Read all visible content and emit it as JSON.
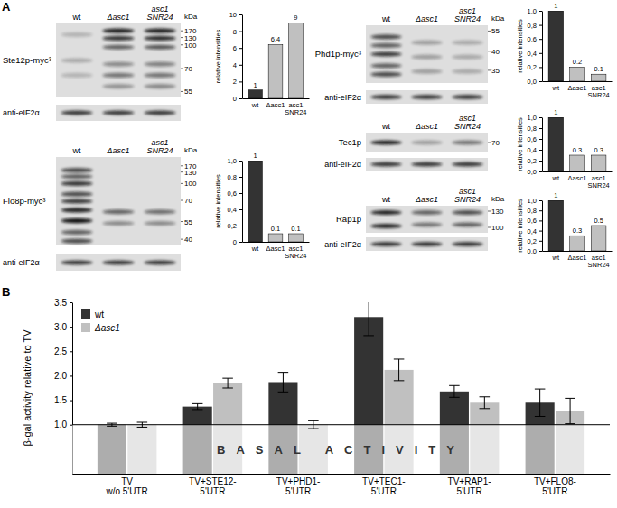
{
  "panel_labels": [
    "A",
    "B"
  ],
  "blots": [
    {
      "protein": "Ste12p-myc³",
      "lanes": [
        "wt",
        "Δasc1",
        "asc1\nSNR24"
      ],
      "unit": "kDa",
      "markers": [
        170,
        130,
        100,
        70,
        55
      ],
      "loading_control": "anti-eIF2α"
    },
    {
      "protein": "Flo8p-myc³",
      "lanes": [
        "wt",
        "Δasc1",
        "asc1\nSNR24"
      ],
      "unit": "kDa",
      "markers": [
        170,
        130,
        100,
        70,
        55,
        40
      ],
      "loading_control": "anti-eIF2α"
    },
    {
      "protein": "Phd1p-myc³",
      "lanes": [
        "wt",
        "Δasc1",
        "asc1\nSNR24"
      ],
      "unit": "kDa",
      "markers": [
        55,
        40,
        35
      ],
      "loading_control": "anti-eIF2α"
    },
    {
      "protein": "Tec1p",
      "lanes": [
        "wt",
        "Δasc1",
        "asc1\nSNR24"
      ],
      "markers": [
        70
      ],
      "loading_control": "anti-eIF2α"
    },
    {
      "protein": "Rap1p",
      "lanes": [
        "wt",
        "Δasc1",
        "asc1\nSNR24"
      ],
      "unit": "kDa",
      "markers": [
        130,
        100
      ],
      "loading_control": "anti-eIF2α"
    }
  ],
  "chart_data": [
    {
      "type": "bar",
      "categories": [
        "wt",
        "Δasc1",
        "asc1\nSNR24"
      ],
      "values": [
        1,
        6.4,
        9
      ],
      "colors": [
        "#333333",
        "#c0c0c0",
        "#c0c0c0"
      ],
      "ylabel": "relative intensities",
      "ylim": [
        0,
        10
      ],
      "yticks": [
        0,
        2,
        4,
        6,
        8,
        10
      ],
      "data_labels": true
    },
    {
      "type": "bar",
      "categories": [
        "wt",
        "Δasc1",
        "asc1\nSNR24"
      ],
      "values": [
        1,
        0.1,
        0.1
      ],
      "colors": [
        "#333333",
        "#c0c0c0",
        "#c0c0c0"
      ],
      "ylabel": "relative intensities",
      "ylim": [
        0,
        1
      ],
      "yticks": [
        0,
        {
          "value": 0.2,
          "label": "0,2"
        },
        {
          "value": 0.4,
          "label": "0,4"
        },
        {
          "value": 0.6,
          "label": "0,6"
        },
        {
          "value": 0.8,
          "label": "0,8"
        },
        {
          "value": 1,
          "label": "1,0"
        }
      ],
      "data_labels": true
    },
    {
      "type": "bar",
      "categories": [
        "wt",
        "Δasc1",
        "asc1\nSNR24"
      ],
      "values": [
        1,
        0.2,
        0.1
      ],
      "colors": [
        "#333333",
        "#c0c0c0",
        "#c0c0c0"
      ],
      "ylabel": "relative intensities",
      "ylim": [
        0,
        1
      ],
      "yticks": [
        {
          "value": 0,
          "label": "0,0"
        },
        {
          "value": 0.2,
          "label": "0,2"
        },
        {
          "value": 0.4,
          "label": "0,4"
        },
        {
          "value": 0.6,
          "label": "0,6"
        },
        {
          "value": 0.8,
          "label": "0,8"
        },
        {
          "value": 1,
          "label": "1,0"
        }
      ],
      "data_labels": true
    },
    {
      "type": "bar",
      "categories": [
        "wt",
        "Δasc1",
        "asc1\nSNR24"
      ],
      "values": [
        1,
        0.3,
        0.3
      ],
      "colors": [
        "#333333",
        "#c0c0c0",
        "#c0c0c0"
      ],
      "ylabel": "relative intensities",
      "ylim": [
        0,
        1
      ],
      "yticks": [
        {
          "value": 0,
          "label": "0,0"
        },
        {
          "value": 0.2,
          "label": "0,2"
        },
        {
          "value": 0.4,
          "label": "0,4"
        },
        {
          "value": 0.6,
          "label": "0,6"
        },
        {
          "value": 0.8,
          "label": "0,8"
        },
        {
          "value": 1,
          "label": "1,0"
        }
      ],
      "data_labels": true
    },
    {
      "type": "bar",
      "categories": [
        "wt",
        "Δasc1",
        "asc1\nSNR24"
      ],
      "values": [
        1,
        0.3,
        0.5
      ],
      "colors": [
        "#333333",
        "#c0c0c0",
        "#c0c0c0"
      ],
      "ylabel": "relative intensities",
      "ylim": [
        0,
        1
      ],
      "yticks": [
        {
          "value": 0,
          "label": "0,0"
        },
        {
          "value": 0.2,
          "label": "0,2"
        },
        {
          "value": 0.4,
          "label": "0,4"
        },
        {
          "value": 0.6,
          "label": "0,6"
        },
        {
          "value": 0.8,
          "label": "0,8"
        },
        {
          "value": 1,
          "label": "1,0"
        }
      ],
      "data_labels": true
    },
    {
      "type": "bar",
      "categories": [
        "TV\nw/o 5'UTR",
        "TV+STE12-\n5'UTR",
        "TV+PHD1-\n5'UTR",
        "TV+TEC1-\n5'UTR",
        "TV+RAP1-\n5'UTR",
        "TV+FLO8-\n5'UTR"
      ],
      "series": [
        {
          "name": "wt",
          "color": "#333333",
          "values": [
            1.0,
            1.37,
            1.87,
            3.2,
            1.68,
            1.45
          ],
          "errors": [
            0.03,
            0.06,
            0.2,
            0.38,
            0.12,
            0.28
          ]
        },
        {
          "name": "Δasc1",
          "color": "#c0c0c0",
          "values": [
            1.0,
            1.85,
            1.0,
            2.12,
            1.45,
            1.28
          ],
          "errors": [
            0.05,
            0.1,
            0.08,
            0.22,
            0.12,
            0.26
          ]
        }
      ],
      "ylabel": "β-gal activity relative to TV",
      "ylim": [
        0,
        3.5
      ],
      "yticks": [
        {
          "value": 1,
          "label": "1.0"
        },
        1.5,
        {
          "value": 2,
          "label": "2.0"
        },
        2.5,
        {
          "value": 3,
          "label": "3.0"
        },
        3.5
      ],
      "legend": "top-left",
      "annotations": [
        {
          "text": "BASAL ACTIVITY",
          "y": 1
        }
      ]
    }
  ]
}
